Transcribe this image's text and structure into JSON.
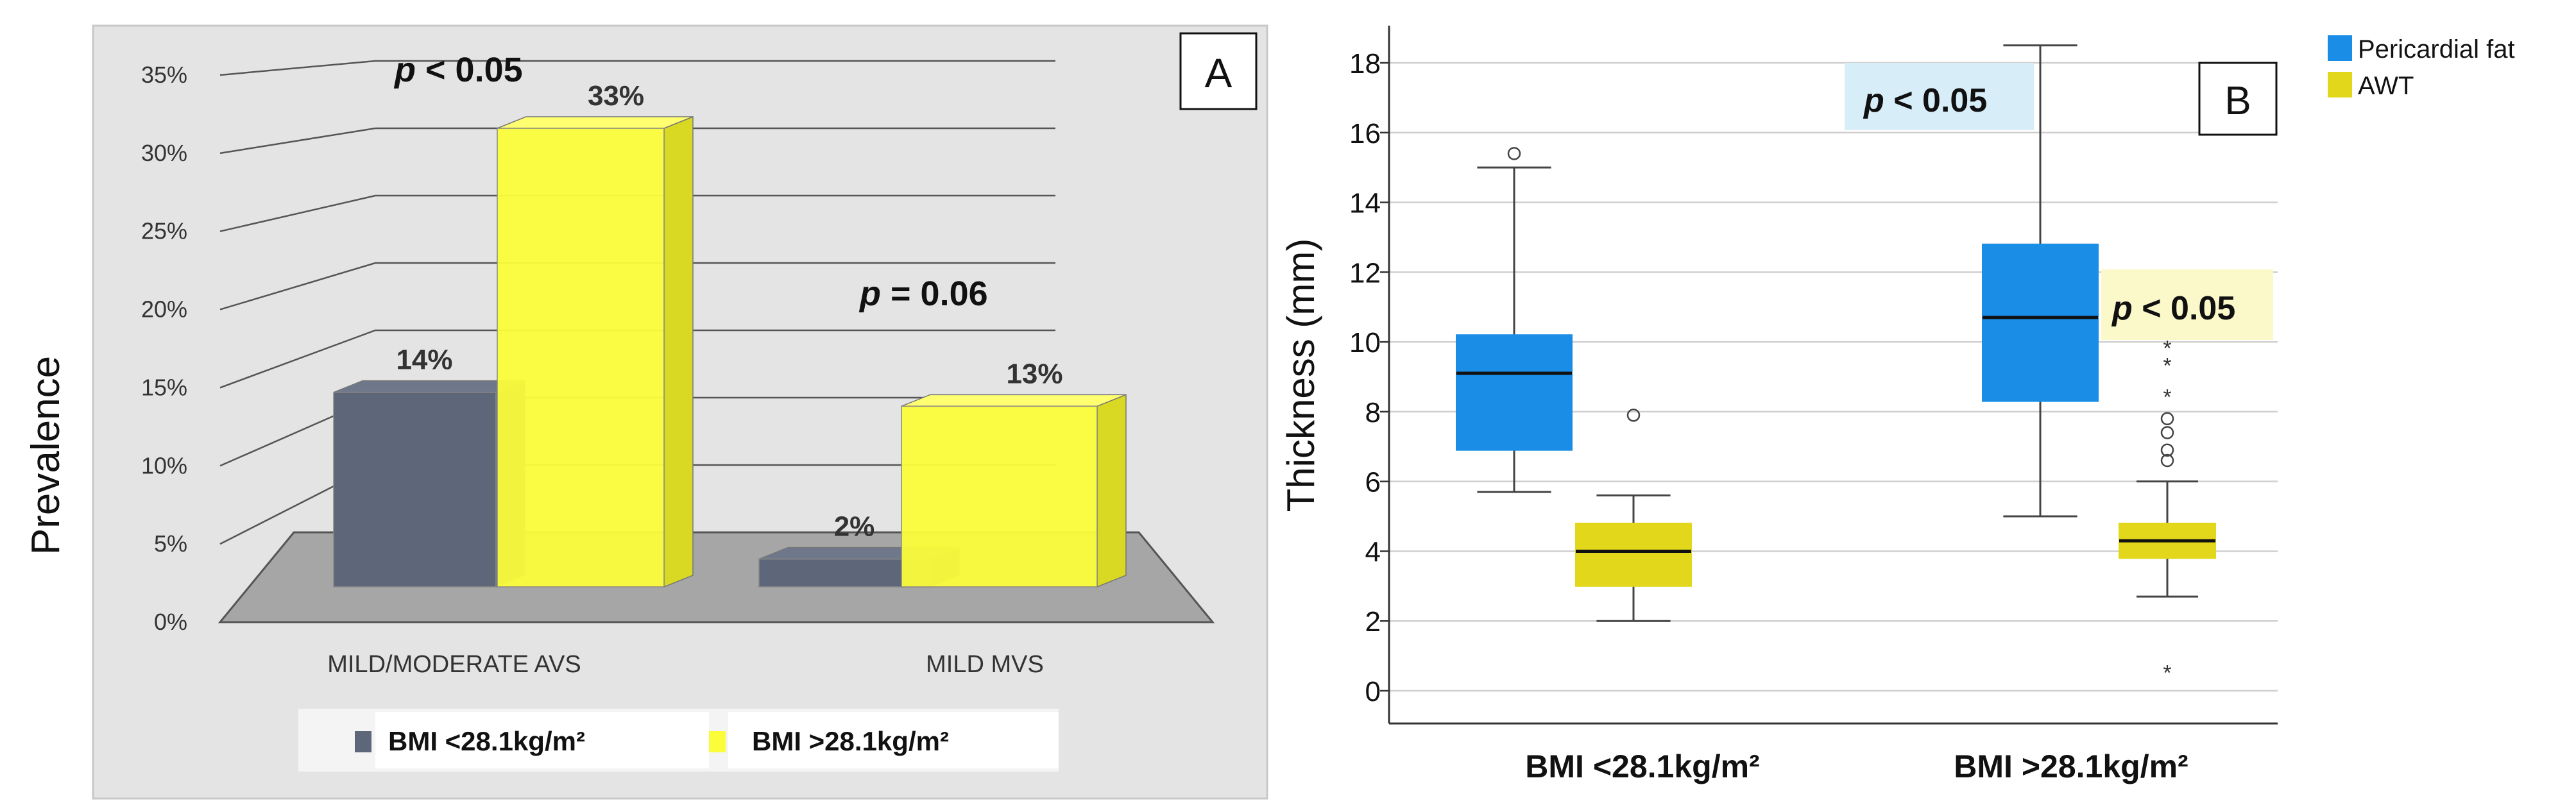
{
  "chart_data": [
    {
      "panel": "A",
      "type": "bar",
      "ylabel": "Prevalence",
      "ylim": [
        0,
        35
      ],
      "y_ticks": [
        "0%",
        "5%",
        "10%",
        "15%",
        "20%",
        "25%",
        "30%",
        "35%"
      ],
      "categories": [
        "MILD/MODERATE AVS",
        "MILD MVS"
      ],
      "series": [
        {
          "name": "BMI <28.1kg/m²",
          "values": [
            14,
            2
          ],
          "labels": [
            "14%",
            "2%"
          ],
          "color": "#5e6779"
        },
        {
          "name": "BMI >28.1kg/m²",
          "values": [
            33,
            13
          ],
          "labels": [
            "33%",
            "13%"
          ],
          "color": "#fbfc3a"
        }
      ],
      "annotations": [
        {
          "prefix": "p",
          "text": " < 0.05",
          "category": "MILD/MODERATE AVS"
        },
        {
          "prefix": "p",
          "text": " = 0.06",
          "category": "MILD MVS"
        }
      ],
      "legend": [
        "BMI <28.1kg/m²",
        "BMI >28.1kg/m²"
      ]
    },
    {
      "panel": "B",
      "type": "box",
      "ylabel": "Thickness (mm)",
      "ylim": [
        -1,
        19
      ],
      "y_ticks": [
        "0",
        "2",
        "4",
        "6",
        "8",
        "10",
        "12",
        "14",
        "16",
        "18"
      ],
      "categories": [
        "BMI <28.1kg/m²",
        "BMI >28.1kg/m²"
      ],
      "legend": [
        {
          "name": "Pericardial fat",
          "color": "#1a8ee6"
        },
        {
          "name": "AWT",
          "color": "#e2d71b"
        }
      ],
      "boxes": [
        {
          "group": "BMI <28.1kg/m²",
          "series": "Pericardial fat",
          "whisker_low": 5.7,
          "q1": 6.9,
          "median": 9.1,
          "q3": 10.2,
          "whisker_high": 15.0,
          "outliers_circle": [
            15.4
          ],
          "outliers_star": []
        },
        {
          "group": "BMI <28.1kg/m²",
          "series": "AWT",
          "whisker_low": 2.0,
          "q1": 3.0,
          "median": 4.0,
          "q3": 4.8,
          "whisker_high": 5.6,
          "outliers_circle": [
            7.9
          ],
          "outliers_star": []
        },
        {
          "group": "BMI >28.1kg/m²",
          "series": "Pericardial fat",
          "whisker_low": 5.0,
          "q1": 8.3,
          "median": 10.7,
          "q3": 12.8,
          "whisker_high": 18.5,
          "outliers_circle": [],
          "outliers_star": []
        },
        {
          "group": "BMI >28.1kg/m²",
          "series": "AWT",
          "whisker_low": 2.7,
          "q1": 3.8,
          "median": 4.3,
          "q3": 4.8,
          "whisker_high": 6.0,
          "outliers_circle": [
            6.6,
            6.9,
            7.4,
            7.8
          ],
          "outliers_star": [
            0.6,
            8.5,
            9.4,
            9.9
          ]
        }
      ],
      "annotations": [
        {
          "prefix": "p",
          "text": " < 0.05",
          "series": "Pericardial fat"
        },
        {
          "prefix": "p",
          "text": " < 0.05",
          "series": "AWT"
        }
      ]
    }
  ]
}
